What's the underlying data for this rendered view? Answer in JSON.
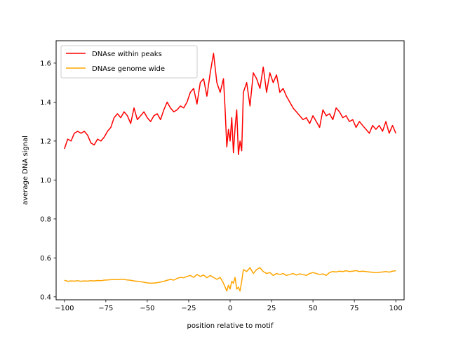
{
  "chart_data": {
    "type": "line",
    "xlabel": "position relative to motif",
    "ylabel": "average DNA signal",
    "xlim": [
      -105,
      105
    ],
    "ylim": [
      0.385,
      1.715
    ],
    "xticks": [
      -100,
      -75,
      -50,
      -25,
      0,
      25,
      50,
      75,
      100
    ],
    "xtick_labels": [
      "−100",
      "−75",
      "−50",
      "−25",
      "0",
      "25",
      "50",
      "75",
      "100"
    ],
    "yticks": [
      0.4,
      0.6,
      0.8,
      1.0,
      1.2,
      1.4,
      1.6
    ],
    "ytick_labels": [
      "0.4",
      "0.6",
      "0.8",
      "1.0",
      "1.2",
      "1.4",
      "1.6"
    ],
    "grid": false,
    "legend_position": "top-left",
    "series": [
      {
        "name": "DNAse within peaks",
        "color": "#ff0000",
        "x": [
          -100,
          -98,
          -96,
          -94,
          -92,
          -90,
          -88,
          -86,
          -84,
          -82,
          -80,
          -78,
          -76,
          -74,
          -72,
          -70,
          -68,
          -66,
          -64,
          -62,
          -60,
          -58,
          -56,
          -54,
          -52,
          -50,
          -48,
          -46,
          -44,
          -42,
          -40,
          -38,
          -36,
          -34,
          -32,
          -30,
          -28,
          -26,
          -24,
          -22,
          -20,
          -18,
          -16,
          -14,
          -12,
          -10,
          -8,
          -6,
          -4,
          -3,
          -2,
          -1,
          0,
          1,
          2,
          3,
          4,
          5,
          6,
          7,
          8,
          10,
          12,
          14,
          16,
          18,
          20,
          22,
          24,
          26,
          28,
          30,
          32,
          34,
          36,
          38,
          40,
          42,
          44,
          46,
          48,
          50,
          52,
          54,
          56,
          58,
          60,
          62,
          64,
          66,
          68,
          70,
          72,
          74,
          76,
          78,
          80,
          82,
          84,
          86,
          88,
          90,
          92,
          94,
          96,
          98,
          100
        ],
        "values": [
          1.16,
          1.21,
          1.2,
          1.24,
          1.25,
          1.24,
          1.25,
          1.23,
          1.19,
          1.18,
          1.21,
          1.2,
          1.22,
          1.25,
          1.27,
          1.32,
          1.34,
          1.32,
          1.35,
          1.33,
          1.29,
          1.37,
          1.31,
          1.33,
          1.35,
          1.32,
          1.3,
          1.33,
          1.34,
          1.31,
          1.36,
          1.4,
          1.37,
          1.35,
          1.36,
          1.38,
          1.37,
          1.4,
          1.45,
          1.47,
          1.39,
          1.5,
          1.52,
          1.43,
          1.55,
          1.65,
          1.5,
          1.45,
          1.52,
          1.36,
          1.17,
          1.26,
          1.2,
          1.32,
          1.14,
          1.27,
          1.36,
          1.13,
          1.2,
          1.15,
          1.45,
          1.5,
          1.38,
          1.55,
          1.52,
          1.47,
          1.58,
          1.45,
          1.55,
          1.5,
          1.54,
          1.45,
          1.47,
          1.43,
          1.4,
          1.37,
          1.35,
          1.33,
          1.31,
          1.32,
          1.29,
          1.33,
          1.3,
          1.27,
          1.36,
          1.33,
          1.34,
          1.31,
          1.37,
          1.35,
          1.32,
          1.33,
          1.3,
          1.31,
          1.27,
          1.3,
          1.28,
          1.26,
          1.24,
          1.28,
          1.26,
          1.28,
          1.25,
          1.3,
          1.24,
          1.28,
          1.24
        ]
      },
      {
        "name": "DNAse genome wide",
        "color": "#ffa500",
        "x": [
          -100,
          -98,
          -96,
          -94,
          -92,
          -90,
          -88,
          -86,
          -84,
          -82,
          -80,
          -78,
          -76,
          -74,
          -72,
          -70,
          -68,
          -66,
          -64,
          -62,
          -60,
          -58,
          -56,
          -54,
          -52,
          -50,
          -48,
          -46,
          -44,
          -42,
          -40,
          -38,
          -36,
          -34,
          -32,
          -30,
          -28,
          -26,
          -24,
          -22,
          -20,
          -18,
          -16,
          -14,
          -12,
          -10,
          -8,
          -6,
          -4,
          -3,
          -2,
          -1,
          0,
          1,
          2,
          3,
          4,
          5,
          6,
          7,
          8,
          10,
          12,
          14,
          16,
          18,
          20,
          22,
          24,
          26,
          28,
          30,
          32,
          34,
          36,
          38,
          40,
          42,
          44,
          46,
          48,
          50,
          52,
          54,
          56,
          58,
          60,
          62,
          64,
          66,
          68,
          70,
          72,
          74,
          76,
          78,
          80,
          82,
          84,
          86,
          88,
          90,
          92,
          94,
          96,
          98,
          100
        ],
        "values": [
          0.485,
          0.48,
          0.482,
          0.481,
          0.483,
          0.48,
          0.482,
          0.481,
          0.483,
          0.482,
          0.484,
          0.483,
          0.486,
          0.487,
          0.488,
          0.49,
          0.488,
          0.491,
          0.489,
          0.487,
          0.485,
          0.482,
          0.48,
          0.478,
          0.475,
          0.472,
          0.47,
          0.471,
          0.473,
          0.476,
          0.48,
          0.485,
          0.49,
          0.486,
          0.495,
          0.5,
          0.498,
          0.505,
          0.51,
          0.5,
          0.515,
          0.505,
          0.512,
          0.498,
          0.51,
          0.5,
          0.49,
          0.5,
          0.47,
          0.45,
          0.43,
          0.46,
          0.44,
          0.48,
          0.47,
          0.5,
          0.44,
          0.45,
          0.43,
          0.48,
          0.54,
          0.53,
          0.55,
          0.52,
          0.54,
          0.55,
          0.53,
          0.52,
          0.525,
          0.51,
          0.52,
          0.515,
          0.52,
          0.51,
          0.515,
          0.52,
          0.512,
          0.518,
          0.515,
          0.51,
          0.52,
          0.525,
          0.52,
          0.515,
          0.518,
          0.51,
          0.525,
          0.53,
          0.528,
          0.532,
          0.53,
          0.534,
          0.53,
          0.532,
          0.535,
          0.53,
          0.532,
          0.53,
          0.528,
          0.526,
          0.524,
          0.526,
          0.528,
          0.53,
          0.527,
          0.532,
          0.534
        ]
      }
    ]
  }
}
